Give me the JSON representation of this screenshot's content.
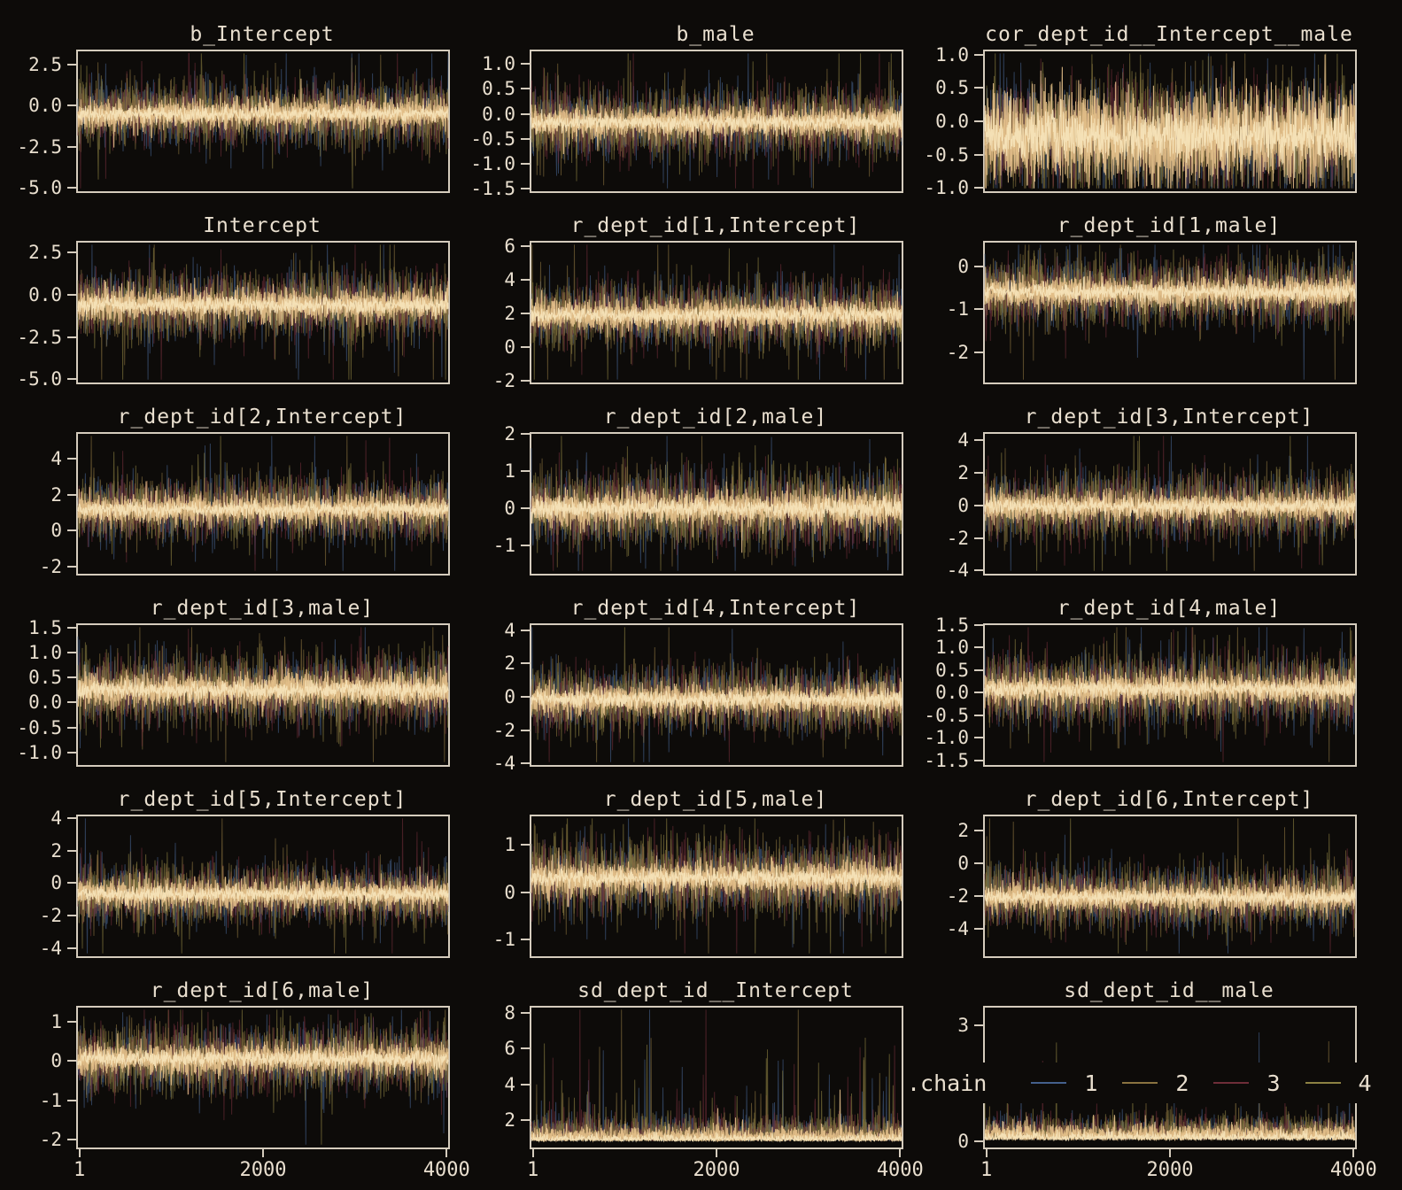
{
  "figure": {
    "kind": "MCMC trace plots (4 chains, 4000 iterations)",
    "background": "#0d0b09",
    "border_color": "#d5ccbd",
    "text_color": "#e9dfcf",
    "core_colors": [
      "#e3bf8a",
      "#f5e3b8"
    ]
  },
  "legend": {
    "label": ".chain",
    "items": [
      {
        "label": "1",
        "color": "#44608c"
      },
      {
        "label": "2",
        "color": "#8a7340"
      },
      {
        "label": "3",
        "color": "#6e2d38"
      },
      {
        "label": "4",
        "color": "#8d8243"
      }
    ]
  },
  "x_axis": {
    "ticks": [
      "1",
      "2000",
      "4000"
    ],
    "fractions": [
      0.004,
      0.5,
      0.996
    ],
    "range": [
      1,
      4000
    ]
  },
  "chart_data": [
    {
      "type": "trace",
      "title": "b_Intercept",
      "ylim": [
        -5.2,
        3.3
      ],
      "center": -0.5,
      "sigma": 0.95,
      "spike_p": 0.025,
      "spike_mul": 2.4,
      "skew": false,
      "core": 0.5,
      "yticks": [
        {
          "label": "2.5",
          "value": 2.5
        },
        {
          "label": "0.0",
          "value": 0
        },
        {
          "label": "-2.5",
          "value": -2.5
        },
        {
          "label": "-5.0",
          "value": -5
        }
      ]
    },
    {
      "type": "trace",
      "title": "b_male",
      "ylim": [
        -1.55,
        1.25
      ],
      "center": -0.17,
      "sigma": 0.33,
      "spike_p": 0.025,
      "spike_mul": 2.4,
      "skew": false,
      "core": 0.5,
      "yticks": [
        {
          "label": "1.0",
          "value": 1
        },
        {
          "label": "0.5",
          "value": 0.5
        },
        {
          "label": "0.0",
          "value": 0
        },
        {
          "label": "-0.5",
          "value": -0.5
        },
        {
          "label": "-1.0",
          "value": -1
        },
        {
          "label": "-1.5",
          "value": -1.5
        }
      ]
    },
    {
      "type": "trace",
      "title": "cor_dept_id__Intercept__male",
      "ylim": [
        -1.05,
        1.05
      ],
      "center": -0.22,
      "sigma": 0.42,
      "spike_p": 0.01,
      "spike_mul": 1.6,
      "skew": false,
      "core": 0.85,
      "yticks": [
        {
          "label": "1.0",
          "value": 1
        },
        {
          "label": "0.5",
          "value": 0.5
        },
        {
          "label": "0.0",
          "value": 0
        },
        {
          "label": "-0.5",
          "value": -0.5
        },
        {
          "label": "-1.0",
          "value": -1
        }
      ]
    },
    {
      "type": "trace",
      "title": "Intercept",
      "ylim": [
        -5.2,
        3.1
      ],
      "center": -0.6,
      "sigma": 0.95,
      "spike_p": 0.025,
      "spike_mul": 2.4,
      "skew": false,
      "core": 0.5,
      "yticks": [
        {
          "label": "2.5",
          "value": 2.5
        },
        {
          "label": "0.0",
          "value": 0
        },
        {
          "label": "-2.5",
          "value": -2.5
        },
        {
          "label": "-5.0",
          "value": -5
        }
      ]
    },
    {
      "type": "trace",
      "title": "r_dept_id[1,Intercept]",
      "ylim": [
        -2.1,
        6.2
      ],
      "center": 1.9,
      "sigma": 0.95,
      "spike_p": 0.025,
      "spike_mul": 2.2,
      "skew": false,
      "core": 0.5,
      "yticks": [
        {
          "label": "6",
          "value": 6
        },
        {
          "label": "4",
          "value": 4
        },
        {
          "label": "2",
          "value": 2
        },
        {
          "label": "0",
          "value": 0
        },
        {
          "label": "-2",
          "value": -2
        }
      ]
    },
    {
      "type": "trace",
      "title": "r_dept_id[1,male]",
      "ylim": [
        -2.7,
        0.55
      ],
      "center": -0.6,
      "sigma": 0.38,
      "spike_p": 0.025,
      "spike_mul": 2.3,
      "skew": false,
      "core": 0.5,
      "yticks": [
        {
          "label": "0",
          "value": 0
        },
        {
          "label": "-1",
          "value": -1
        },
        {
          "label": "-2",
          "value": -2
        }
      ]
    },
    {
      "type": "trace",
      "title": "r_dept_id[2,Intercept]",
      "ylim": [
        -2.4,
        5.4
      ],
      "center": 1.2,
      "sigma": 0.85,
      "spike_p": 0.025,
      "spike_mul": 2.3,
      "skew": false,
      "core": 0.5,
      "yticks": [
        {
          "label": "4",
          "value": 4
        },
        {
          "label": "2",
          "value": 2
        },
        {
          "label": "0",
          "value": 0
        },
        {
          "label": "-2",
          "value": -2
        }
      ]
    },
    {
      "type": "trace",
      "title": "r_dept_id[2,male]",
      "ylim": [
        -1.75,
        2.0
      ],
      "center": 0.0,
      "sigma": 0.5,
      "spike_p": 0.02,
      "spike_mul": 2.0,
      "skew": false,
      "core": 0.5,
      "yticks": [
        {
          "label": "2",
          "value": 2
        },
        {
          "label": "1",
          "value": 1
        },
        {
          "label": "0",
          "value": 0
        },
        {
          "label": "-1",
          "value": -1
        }
      ]
    },
    {
      "type": "trace",
      "title": "r_dept_id[3,Intercept]",
      "ylim": [
        -4.2,
        4.4
      ],
      "center": -0.05,
      "sigma": 0.95,
      "spike_p": 0.02,
      "spike_mul": 2.2,
      "skew": false,
      "core": 0.5,
      "yticks": [
        {
          "label": "4",
          "value": 4
        },
        {
          "label": "2",
          "value": 2
        },
        {
          "label": "0",
          "value": 0
        },
        {
          "label": "-2",
          "value": -2
        },
        {
          "label": "-4",
          "value": -4
        }
      ]
    },
    {
      "type": "trace",
      "title": "r_dept_id[3,male]",
      "ylim": [
        -1.25,
        1.55
      ],
      "center": 0.25,
      "sigma": 0.35,
      "spike_p": 0.02,
      "spike_mul": 2.2,
      "skew": false,
      "core": 0.5,
      "yticks": [
        {
          "label": "1.5",
          "value": 1.5
        },
        {
          "label": "1.0",
          "value": 1
        },
        {
          "label": "0.5",
          "value": 0.5
        },
        {
          "label": "0.0",
          "value": 0
        },
        {
          "label": "-0.5",
          "value": -0.5
        },
        {
          "label": "-1.0",
          "value": -1
        }
      ]
    },
    {
      "type": "trace",
      "title": "r_dept_id[4,Intercept]",
      "ylim": [
        -4.1,
        4.3
      ],
      "center": -0.15,
      "sigma": 0.95,
      "spike_p": 0.02,
      "spike_mul": 2.2,
      "skew": false,
      "core": 0.5,
      "yticks": [
        {
          "label": "4",
          "value": 4
        },
        {
          "label": "2",
          "value": 2
        },
        {
          "label": "0",
          "value": 0
        },
        {
          "label": "-2",
          "value": -2
        },
        {
          "label": "-4",
          "value": -4
        }
      ]
    },
    {
      "type": "trace",
      "title": "r_dept_id[4,male]",
      "ylim": [
        -1.6,
        1.5
      ],
      "center": 0.08,
      "sigma": 0.38,
      "spike_p": 0.02,
      "spike_mul": 2.2,
      "skew": false,
      "core": 0.5,
      "yticks": [
        {
          "label": "1.5",
          "value": 1.5
        },
        {
          "label": "1.0",
          "value": 1
        },
        {
          "label": "0.5",
          "value": 0.5
        },
        {
          "label": "0.0",
          "value": 0
        },
        {
          "label": "-0.5",
          "value": -0.5
        },
        {
          "label": "-1.0",
          "value": -1
        },
        {
          "label": "-1.5",
          "value": -1.5
        }
      ]
    },
    {
      "type": "trace",
      "title": "r_dept_id[5,Intercept]",
      "ylim": [
        -4.5,
        4.1
      ],
      "center": -0.7,
      "sigma": 0.9,
      "spike_p": 0.02,
      "spike_mul": 2.4,
      "skew": false,
      "core": 0.5,
      "yticks": [
        {
          "label": "4",
          "value": 4
        },
        {
          "label": "2",
          "value": 2
        },
        {
          "label": "0",
          "value": 0
        },
        {
          "label": "-2",
          "value": -2
        },
        {
          "label": "-4",
          "value": -4
        }
      ]
    },
    {
      "type": "trace",
      "title": "r_dept_id[5,male]",
      "ylim": [
        -1.35,
        1.6
      ],
      "center": 0.3,
      "sigma": 0.38,
      "spike_p": 0.02,
      "spike_mul": 2.2,
      "skew": false,
      "core": 0.5,
      "yticks": [
        {
          "label": "1",
          "value": 1
        },
        {
          "label": "0",
          "value": 0
        },
        {
          "label": "-1",
          "value": -1
        }
      ]
    },
    {
      "type": "trace",
      "title": "r_dept_id[6,Intercept]",
      "ylim": [
        -5.7,
        2.85
      ],
      "center": -2.1,
      "sigma": 0.9,
      "spike_p": 0.02,
      "spike_mul": 2.3,
      "skew": false,
      "core": 0.5,
      "yticks": [
        {
          "label": "2",
          "value": 2
        },
        {
          "label": "0",
          "value": 0
        },
        {
          "label": "-2",
          "value": -2
        },
        {
          "label": "-4",
          "value": -4
        }
      ]
    },
    {
      "type": "trace",
      "title": "r_dept_id[6,male]",
      "ylim": [
        -2.2,
        1.35
      ],
      "center": 0.05,
      "sigma": 0.42,
      "spike_p": 0.02,
      "spike_mul": 2.2,
      "skew": false,
      "core": 0.5,
      "show_x": true,
      "yticks": [
        {
          "label": "1",
          "value": 1
        },
        {
          "label": "0",
          "value": 0
        },
        {
          "label": "-1",
          "value": -1
        },
        {
          "label": "-2",
          "value": -2
        }
      ]
    },
    {
      "type": "trace",
      "title": "sd_dept_id__Intercept",
      "ylim": [
        0.45,
        8.3
      ],
      "center": 0.8,
      "sigma": 0.6,
      "spike_p": 0.05,
      "spike_mul": 3.2,
      "skew": true,
      "core": 0.6,
      "show_x": true,
      "yticks": [
        {
          "label": "8",
          "value": 8
        },
        {
          "label": "6",
          "value": 6
        },
        {
          "label": "4",
          "value": 4
        },
        {
          "label": "2",
          "value": 2
        }
      ]
    },
    {
      "type": "trace",
      "title": "sd_dept_id__male",
      "ylim": [
        -0.15,
        3.45
      ],
      "center": 0.04,
      "sigma": 0.28,
      "spike_p": 0.006,
      "spike_mul": 6,
      "skew": true,
      "core": 0.7,
      "show_x": true,
      "legend_overlay": true,
      "yticks": [
        {
          "label": "3",
          "value": 3
        },
        {
          "label": "0",
          "value": 0
        }
      ]
    }
  ]
}
